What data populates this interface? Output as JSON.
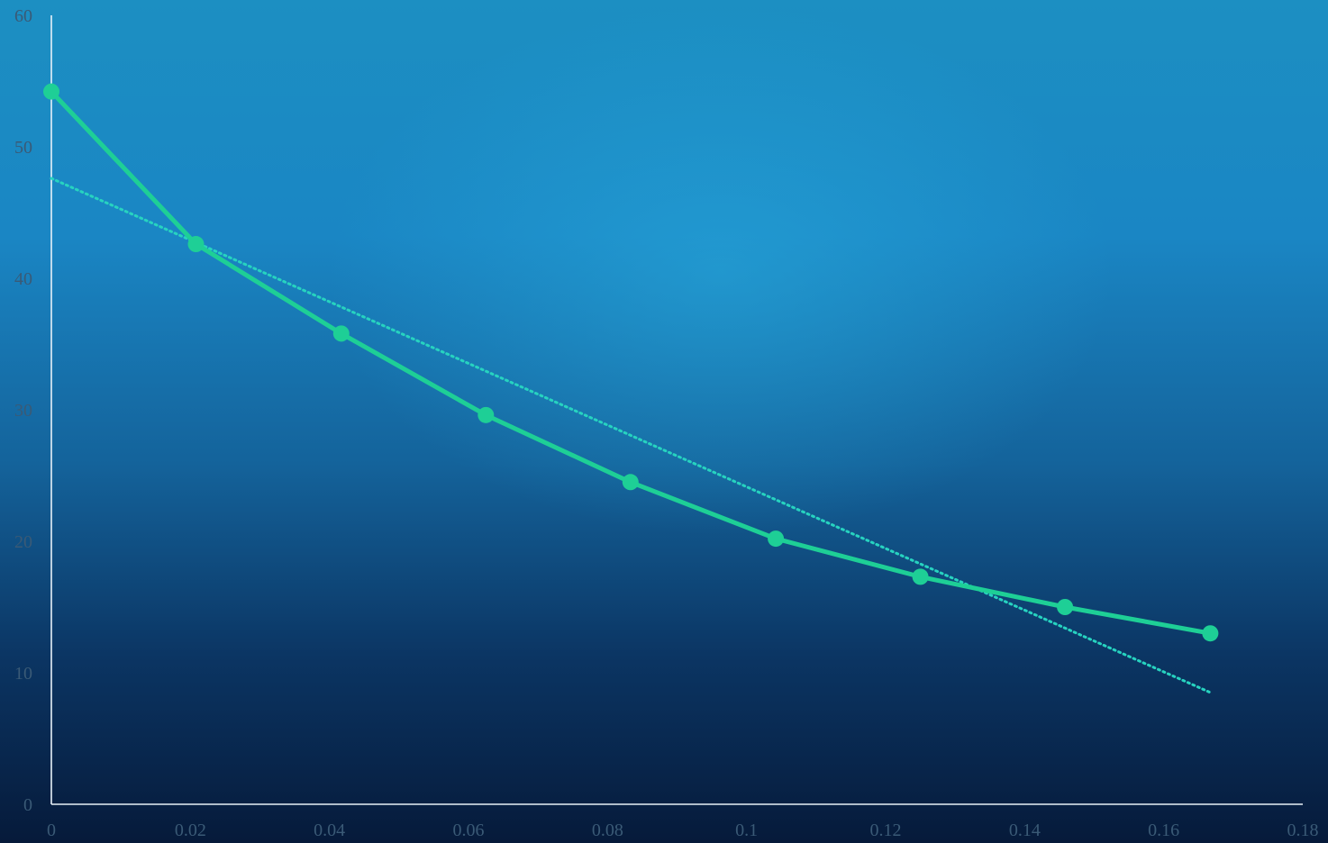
{
  "chart_data": {
    "type": "line",
    "title": "",
    "xlabel": "",
    "ylabel": "",
    "xlim": [
      0,
      0.18
    ],
    "ylim": [
      0,
      60
    ],
    "x_ticks": [
      "0",
      "0.02",
      "0.04",
      "0.06",
      "0.08",
      "0.1",
      "0.12",
      "0.14",
      "0.16",
      "0.18"
    ],
    "y_ticks": [
      "0",
      "10",
      "20",
      "30",
      "40",
      "50",
      "60"
    ],
    "grid": false,
    "legend": "none",
    "series": [
      {
        "x": [
          0,
          0.0208,
          0.0417,
          0.0625,
          0.0833,
          0.1042,
          0.125,
          0.1458,
          0.1667
        ],
        "y": [
          54.2,
          42.6,
          35.8,
          29.6,
          24.5,
          20.2,
          17.3,
          15.0,
          13.0
        ],
        "color": "#1ecf96",
        "style": "solid-markers"
      }
    ],
    "trendline": {
      "type": "linear",
      "x": [
        0,
        0.1667
      ],
      "y": [
        47.6,
        8.5
      ],
      "color": "#27d3c0",
      "style": "dotted"
    },
    "colors": {
      "tick_label": "#3a5a76",
      "axis": "#e8f1f8"
    }
  }
}
